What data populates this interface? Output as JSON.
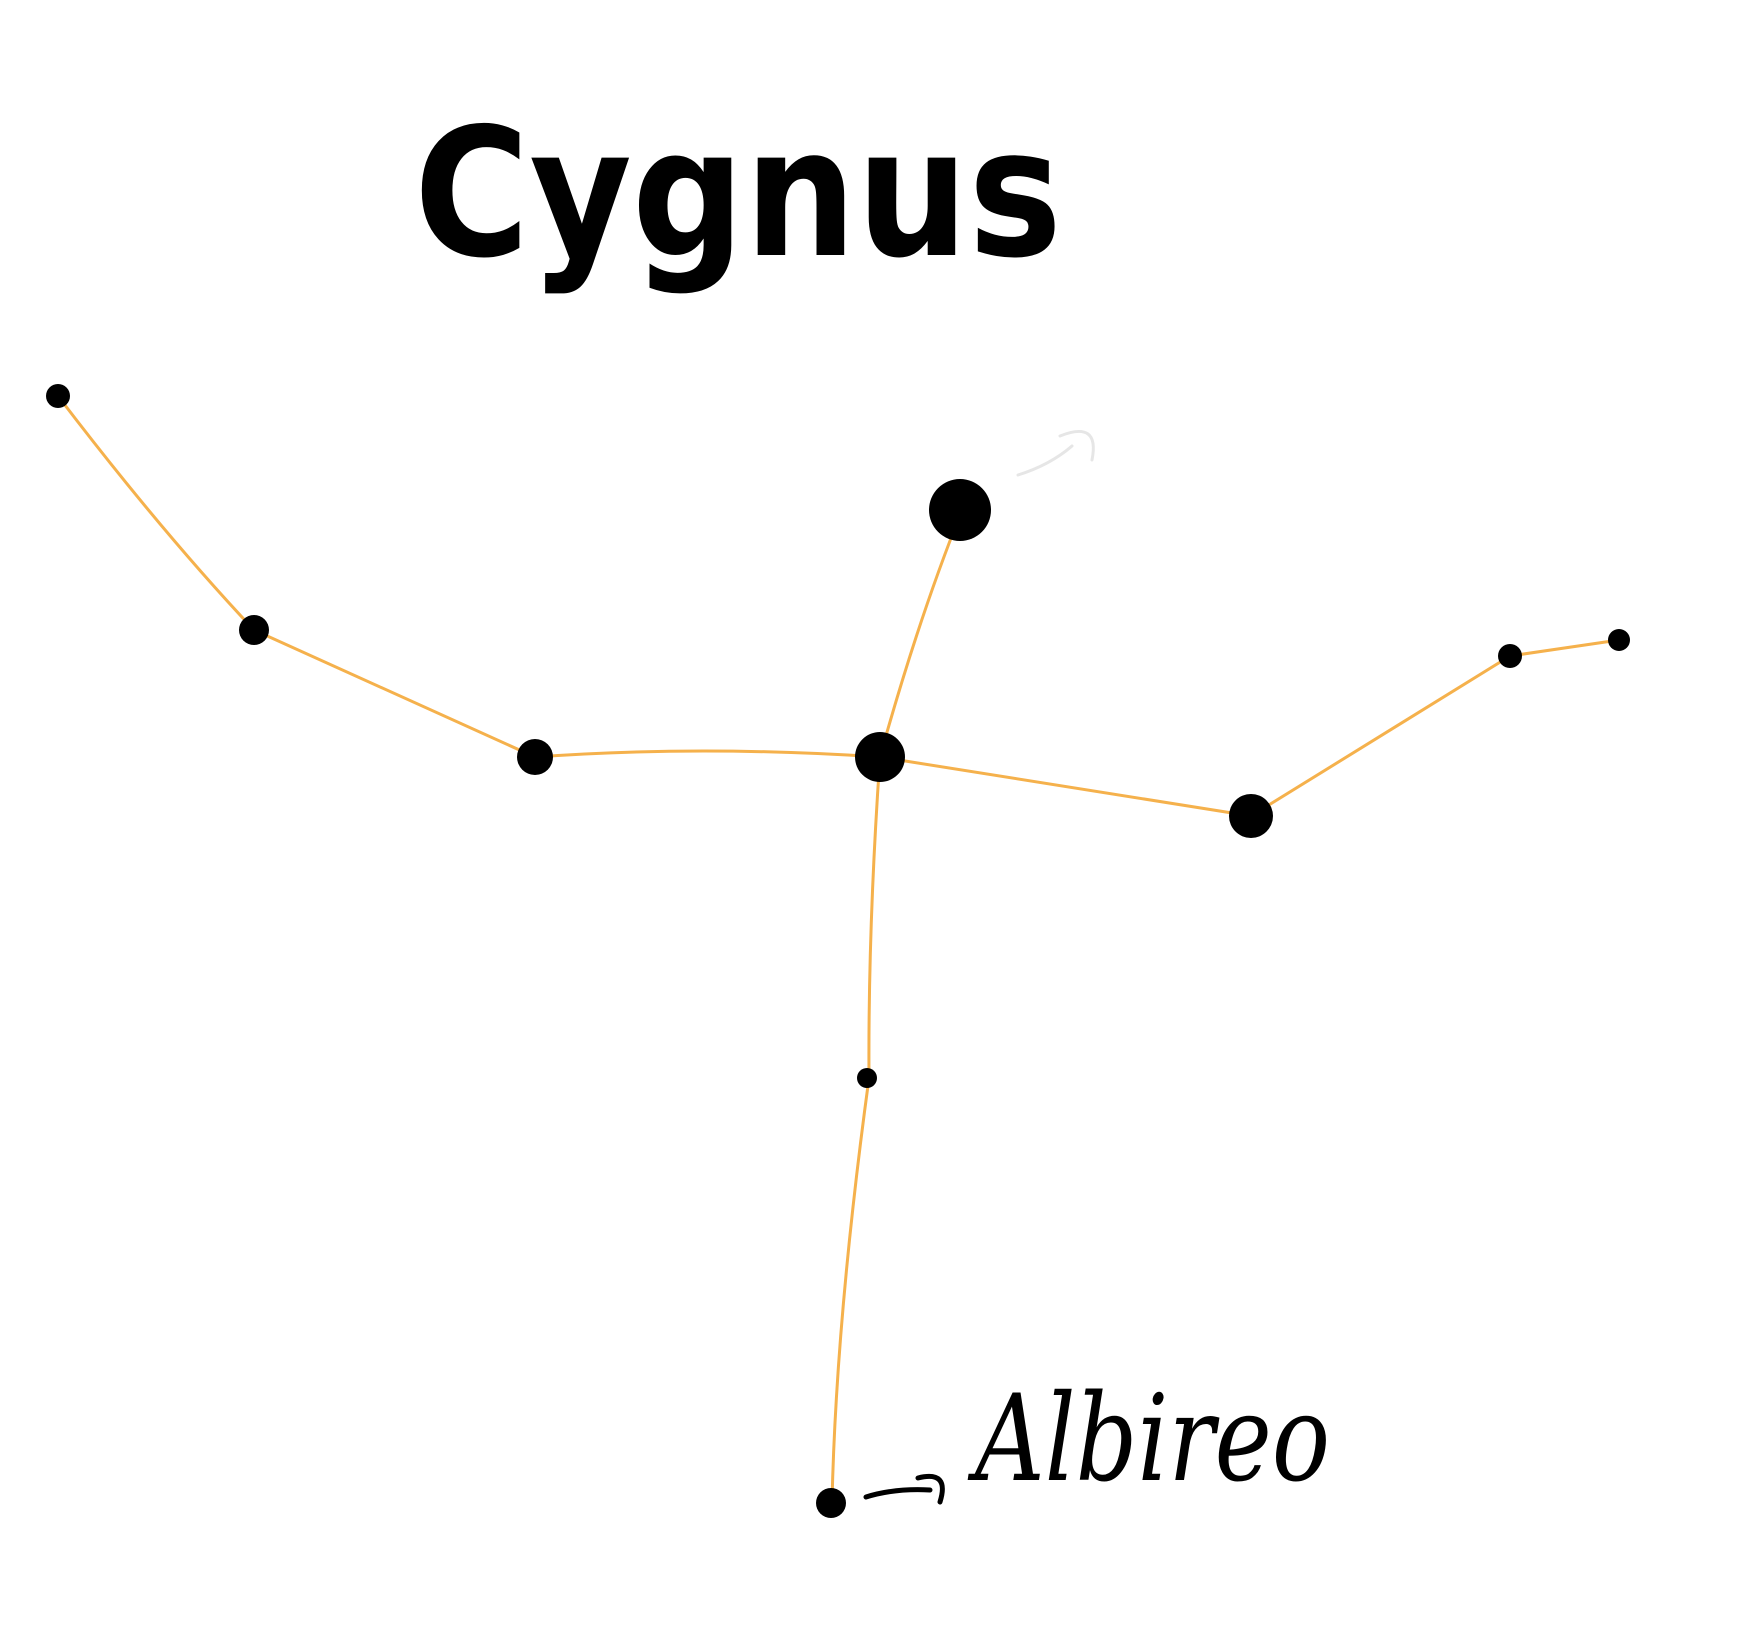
{
  "title": "Cygnus",
  "star_label": "Albireo",
  "colors": {
    "background": "#ffffff",
    "star": "#000000",
    "line": "#f5b14c",
    "text": "#000000",
    "faint_arrow": "#e6e6e6"
  },
  "icons": {
    "star": "filled-circle",
    "pointer": "hand-drawn-arrow"
  }
}
